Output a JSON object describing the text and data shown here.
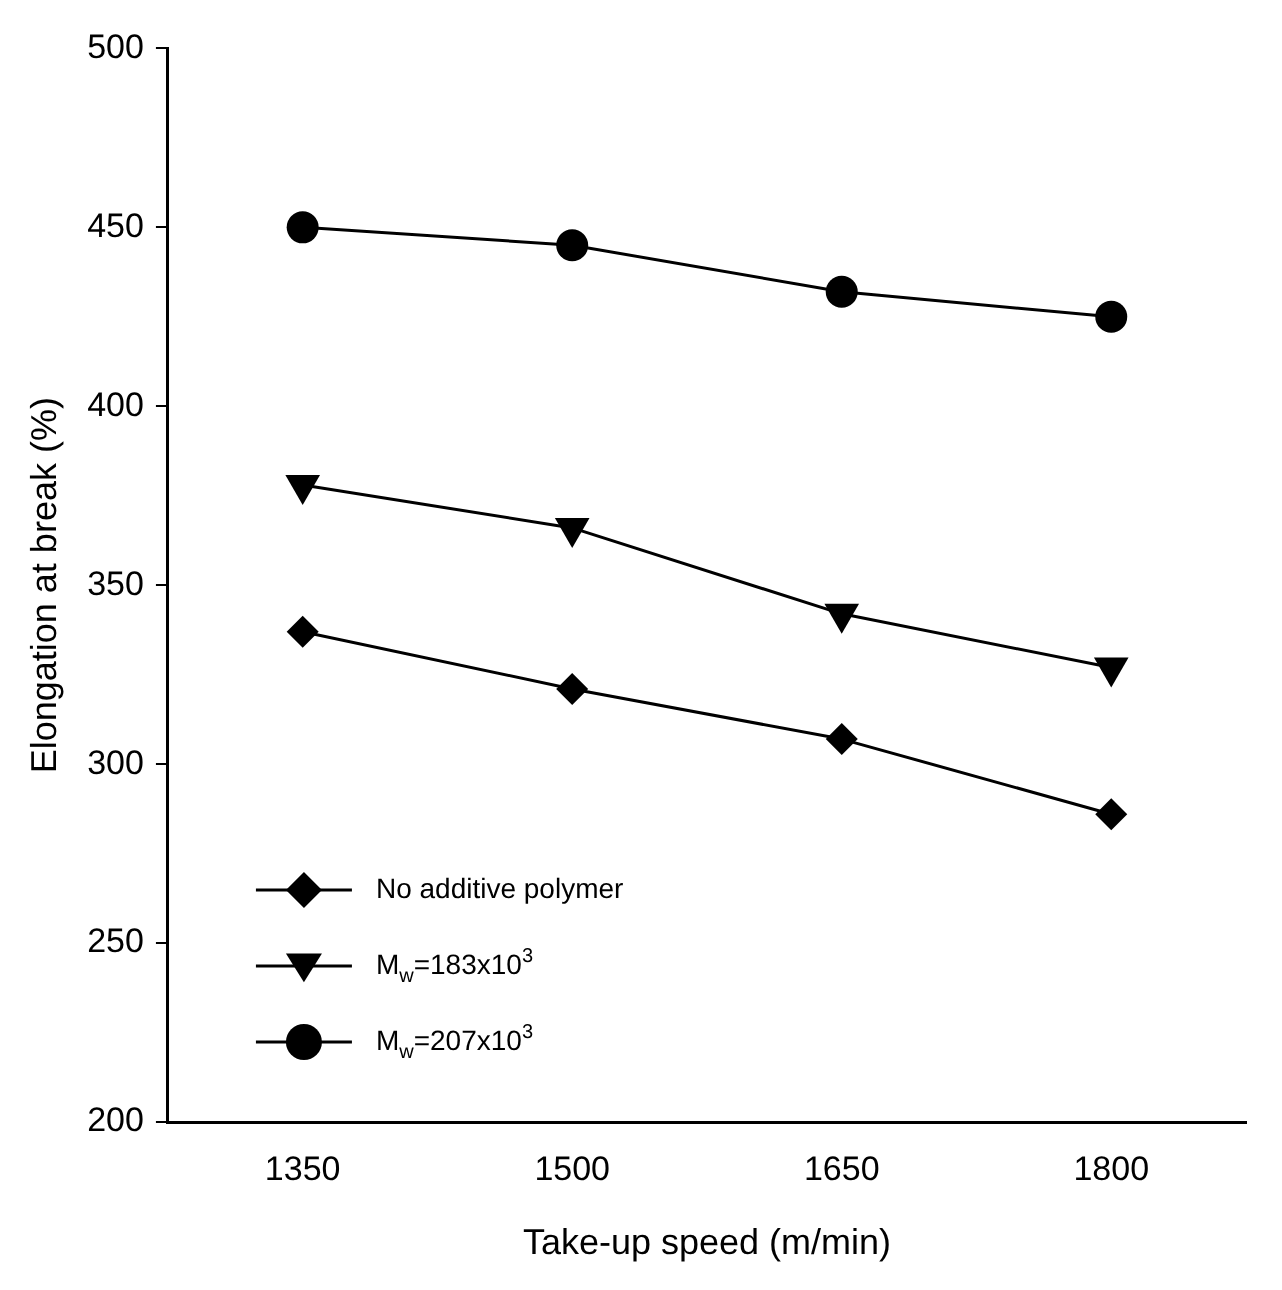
{
  "chart_data": {
    "type": "line",
    "xlabel": "Take-up speed (m/min)",
    "ylabel": "Elongation at break (%)",
    "categories": [
      "1350",
      "1500",
      "1650",
      "1800"
    ],
    "ylim": [
      200,
      500
    ],
    "yticks": [
      200,
      250,
      300,
      350,
      400,
      450,
      500
    ],
    "grid": false,
    "legend": "bottom left",
    "line_style": "solid",
    "series": [
      {
        "name": "No additive polymer",
        "color": "#000000",
        "marker": "diamond",
        "values": [
          337,
          321,
          307,
          286
        ]
      },
      {
        "name": "M$_{w}$=183x10$^{3}$",
        "color": "#000000",
        "marker": "triangle",
        "values": [
          378,
          366,
          342,
          327
        ]
      },
      {
        "name": "M$_{w}$=207x10$^{3}$",
        "color": "#000000",
        "marker": "circle",
        "values": [
          450,
          445,
          432,
          425
        ]
      }
    ]
  }
}
